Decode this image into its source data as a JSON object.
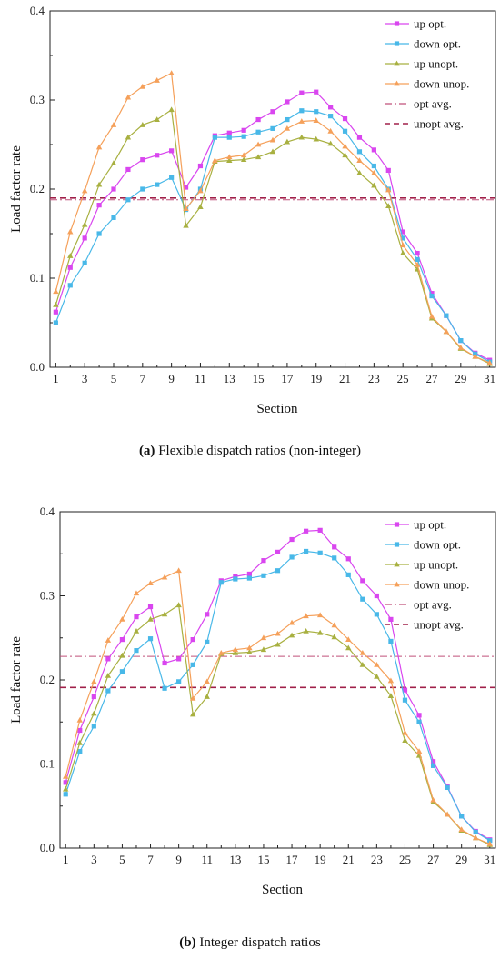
{
  "chart_data": [
    {
      "type": "line",
      "title": "",
      "xlabel": "Section",
      "ylabel": "Load factor rate",
      "xlim": [
        0.6,
        31.4
      ],
      "ylim": [
        0,
        0.4
      ],
      "xticks": [
        1,
        3,
        5,
        7,
        9,
        11,
        13,
        15,
        17,
        19,
        21,
        23,
        25,
        27,
        29,
        31
      ],
      "yticks": [
        0.0,
        0.1,
        0.2,
        0.3,
        0.4
      ],
      "grid": false,
      "legend_position": "top-right",
      "caption_tag": "(a)",
      "caption_text": " Flexible dispatch ratios (non-integer)",
      "x": [
        1,
        2,
        3,
        4,
        5,
        6,
        7,
        8,
        9,
        10,
        11,
        12,
        13,
        14,
        15,
        16,
        17,
        18,
        19,
        20,
        21,
        22,
        23,
        24,
        25,
        26,
        27,
        28,
        29,
        30,
        31
      ],
      "series": [
        {
          "name": "up opt.",
          "marker": "square",
          "color": "#d946ef",
          "values": [
            0.062,
            0.112,
            0.145,
            0.182,
            0.2,
            0.222,
            0.233,
            0.238,
            0.243,
            0.202,
            0.226,
            0.26,
            0.263,
            0.266,
            0.278,
            0.287,
            0.298,
            0.308,
            0.309,
            0.292,
            0.279,
            0.258,
            0.244,
            0.221,
            0.152,
            0.128,
            0.083,
            0.058,
            0.03,
            0.016,
            0.008
          ]
        },
        {
          "name": "down opt.",
          "marker": "square",
          "color": "#48b8e8",
          "values": [
            0.05,
            0.092,
            0.117,
            0.15,
            0.168,
            0.188,
            0.2,
            0.205,
            0.213,
            0.177,
            0.2,
            0.258,
            0.258,
            0.259,
            0.264,
            0.268,
            0.278,
            0.288,
            0.287,
            0.282,
            0.265,
            0.242,
            0.226,
            0.2,
            0.145,
            0.121,
            0.08,
            0.058,
            0.03,
            0.015,
            0.006
          ]
        },
        {
          "name": "up unopt.",
          "marker": "triangle",
          "color": "#a8b040",
          "values": [
            0.07,
            0.125,
            0.16,
            0.205,
            0.229,
            0.258,
            0.272,
            0.278,
            0.289,
            0.159,
            0.18,
            0.231,
            0.232,
            0.233,
            0.236,
            0.242,
            0.253,
            0.258,
            0.256,
            0.251,
            0.238,
            0.218,
            0.204,
            0.181,
            0.128,
            0.11,
            0.055,
            0.04,
            0.021,
            0.012,
            0.004
          ]
        },
        {
          "name": "down unop.",
          "marker": "triangle",
          "color": "#f5a05a",
          "values": [
            0.085,
            0.152,
            0.198,
            0.247,
            0.272,
            0.303,
            0.315,
            0.322,
            0.33,
            0.178,
            0.198,
            0.232,
            0.236,
            0.238,
            0.25,
            0.255,
            0.268,
            0.276,
            0.277,
            0.265,
            0.248,
            0.232,
            0.218,
            0.199,
            0.137,
            0.115,
            0.057,
            0.04,
            0.022,
            0.012,
            0.005
          ]
        }
      ],
      "avg_lines": [
        {
          "name": "opt avg.",
          "value": 0.188,
          "color": "#c0507a",
          "dash": "dashdot"
        },
        {
          "name": "unopt avg.",
          "value": 0.19,
          "color": "#a0204a",
          "dash": "dash"
        }
      ]
    },
    {
      "type": "line",
      "title": "",
      "xlabel": "Section",
      "ylabel": "Load factor rate",
      "xlim": [
        0.6,
        31.4
      ],
      "ylim": [
        0,
        0.4
      ],
      "xticks": [
        1,
        3,
        5,
        7,
        9,
        11,
        13,
        15,
        17,
        19,
        21,
        23,
        25,
        27,
        29,
        31
      ],
      "yticks": [
        0.0,
        0.1,
        0.2,
        0.3,
        0.4
      ],
      "grid": false,
      "legend_position": "top-right",
      "caption_tag": "(b)",
      "caption_text": " Integer dispatch ratios",
      "x": [
        1,
        2,
        3,
        4,
        5,
        6,
        7,
        8,
        9,
        10,
        11,
        12,
        13,
        14,
        15,
        16,
        17,
        18,
        19,
        20,
        21,
        22,
        23,
        24,
        25,
        26,
        27,
        28,
        29,
        30,
        31
      ],
      "series": [
        {
          "name": "up opt.",
          "marker": "square",
          "color": "#d946ef",
          "values": [
            0.078,
            0.14,
            0.18,
            0.225,
            0.248,
            0.275,
            0.287,
            0.22,
            0.225,
            0.248,
            0.278,
            0.318,
            0.323,
            0.326,
            0.342,
            0.352,
            0.367,
            0.377,
            0.378,
            0.358,
            0.344,
            0.318,
            0.3,
            0.272,
            0.188,
            0.158,
            0.103,
            0.073,
            0.038,
            0.02,
            0.01
          ]
        },
        {
          "name": "down opt.",
          "marker": "square",
          "color": "#48b8e8",
          "values": [
            0.064,
            0.115,
            0.145,
            0.187,
            0.21,
            0.235,
            0.249,
            0.19,
            0.198,
            0.218,
            0.245,
            0.316,
            0.32,
            0.321,
            0.324,
            0.33,
            0.346,
            0.353,
            0.351,
            0.345,
            0.325,
            0.296,
            0.278,
            0.246,
            0.176,
            0.15,
            0.098,
            0.072,
            0.038,
            0.019,
            0.009
          ]
        },
        {
          "name": "up unopt.",
          "marker": "triangle",
          "color": "#a8b040",
          "values": [
            0.07,
            0.125,
            0.16,
            0.205,
            0.229,
            0.258,
            0.272,
            0.278,
            0.289,
            0.159,
            0.18,
            0.231,
            0.232,
            0.233,
            0.236,
            0.242,
            0.253,
            0.258,
            0.256,
            0.251,
            0.238,
            0.218,
            0.204,
            0.181,
            0.128,
            0.11,
            0.055,
            0.04,
            0.021,
            0.012,
            0.004
          ]
        },
        {
          "name": "down unop.",
          "marker": "triangle",
          "color": "#f5a05a",
          "values": [
            0.085,
            0.152,
            0.198,
            0.247,
            0.272,
            0.303,
            0.315,
            0.322,
            0.33,
            0.178,
            0.198,
            0.232,
            0.236,
            0.238,
            0.25,
            0.255,
            0.268,
            0.276,
            0.277,
            0.265,
            0.248,
            0.232,
            0.218,
            0.199,
            0.137,
            0.115,
            0.057,
            0.04,
            0.022,
            0.012,
            0.005
          ]
        }
      ],
      "avg_lines": [
        {
          "name": "opt avg.",
          "value": 0.228,
          "color": "#c0507a",
          "dash": "dashdot"
        },
        {
          "name": "unopt avg.",
          "value": 0.191,
          "color": "#a0204a",
          "dash": "dash"
        }
      ]
    }
  ]
}
